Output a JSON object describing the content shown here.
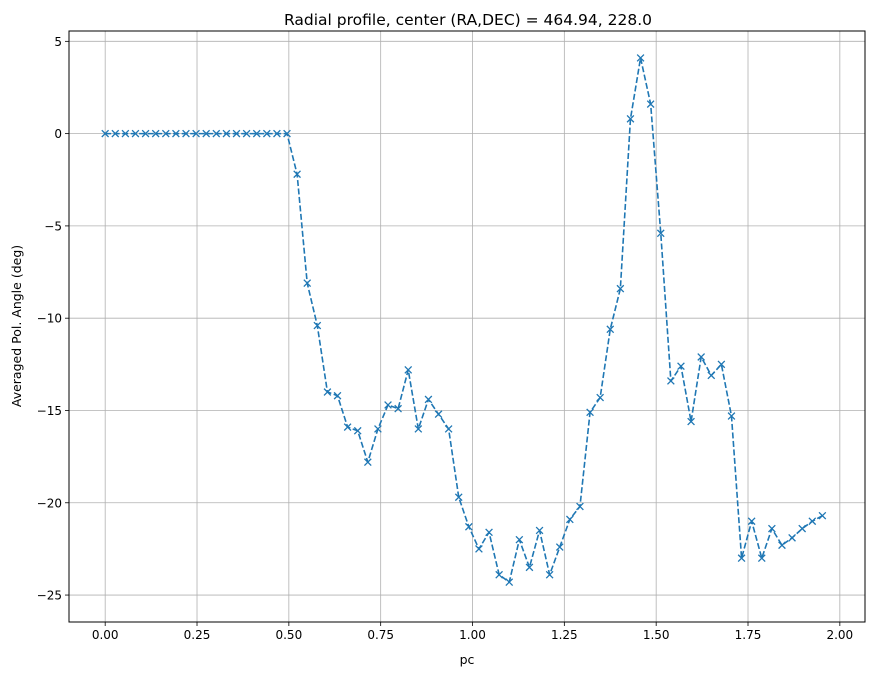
{
  "chart_data": {
    "type": "line",
    "title": "Radial profile, center (RA,DEC) = 464.94, 228.0",
    "xlabel": "pc",
    "ylabel": "Averaged Pol. Angle (deg)",
    "xlim": [
      -0.0985,
      2.0685
    ],
    "ylim": [
      -26.46,
      5.56
    ],
    "grid": true,
    "x_ticks": [
      0.0,
      0.25,
      0.5,
      0.75,
      1.0,
      1.25,
      1.5,
      1.75,
      2.0
    ],
    "x_tick_labels": [
      "0.00",
      "0.25",
      "0.50",
      "0.75",
      "1.00",
      "1.25",
      "1.50",
      "1.75",
      "2.00"
    ],
    "y_ticks": [
      5,
      0,
      -5,
      -10,
      -15,
      -20,
      -25
    ],
    "y_tick_labels": [
      "5",
      "0",
      "−5",
      "−10",
      "−15",
      "−20",
      "−25"
    ],
    "series": [
      {
        "name": "Averaged Pol. Angle",
        "color": "#1f77b4",
        "linestyle": "dashed",
        "marker": "x",
        "x": [
          0.0,
          0.0275,
          0.055,
          0.0825,
          0.11,
          0.1375,
          0.165,
          0.1925,
          0.22,
          0.2475,
          0.275,
          0.3025,
          0.33,
          0.3575,
          0.385,
          0.4125,
          0.44,
          0.4675,
          0.495,
          0.5225,
          0.55,
          0.5775,
          0.605,
          0.6325,
          0.66,
          0.6875,
          0.715,
          0.7425,
          0.77,
          0.7975,
          0.825,
          0.8525,
          0.88,
          0.9075,
          0.935,
          0.9625,
          0.99,
          1.0175,
          1.045,
          1.0725,
          1.1,
          1.1275,
          1.155,
          1.1825,
          1.21,
          1.2375,
          1.265,
          1.2925,
          1.32,
          1.3475,
          1.375,
          1.4025,
          1.43,
          1.4575,
          1.485,
          1.5125,
          1.54,
          1.5675,
          1.595,
          1.6225,
          1.65,
          1.6775,
          1.705,
          1.7325,
          1.76,
          1.7875,
          1.815,
          1.8425,
          1.87,
          1.8975,
          1.925,
          1.9525
        ],
        "values": [
          0.0,
          0.0,
          0.0,
          0.0,
          0.0,
          0.0,
          0.0,
          0.0,
          0.0,
          0.0,
          0.0,
          0.0,
          0.0,
          0.0,
          0.0,
          0.0,
          0.0,
          0.0,
          0.0,
          -2.2,
          -8.1,
          -10.4,
          -14.0,
          -14.2,
          -15.9,
          -16.1,
          -17.8,
          -16.0,
          -14.7,
          -14.9,
          -12.8,
          -16.0,
          -14.4,
          -15.2,
          -16.0,
          -19.7,
          -21.3,
          -22.5,
          -21.6,
          -23.9,
          -24.3,
          -22.0,
          -23.5,
          -21.5,
          -23.9,
          -22.4,
          -20.9,
          -20.2,
          -15.1,
          -14.3,
          -10.6,
          -8.4,
          0.8,
          4.1,
          1.6,
          -5.4,
          -13.4,
          -12.6,
          -15.6,
          -12.1,
          -13.1,
          -12.5,
          -15.3,
          -23.0,
          -21.0,
          -23.0,
          -21.4,
          -22.3,
          -21.9,
          -21.4,
          -21.0,
          -20.7
        ]
      }
    ]
  }
}
